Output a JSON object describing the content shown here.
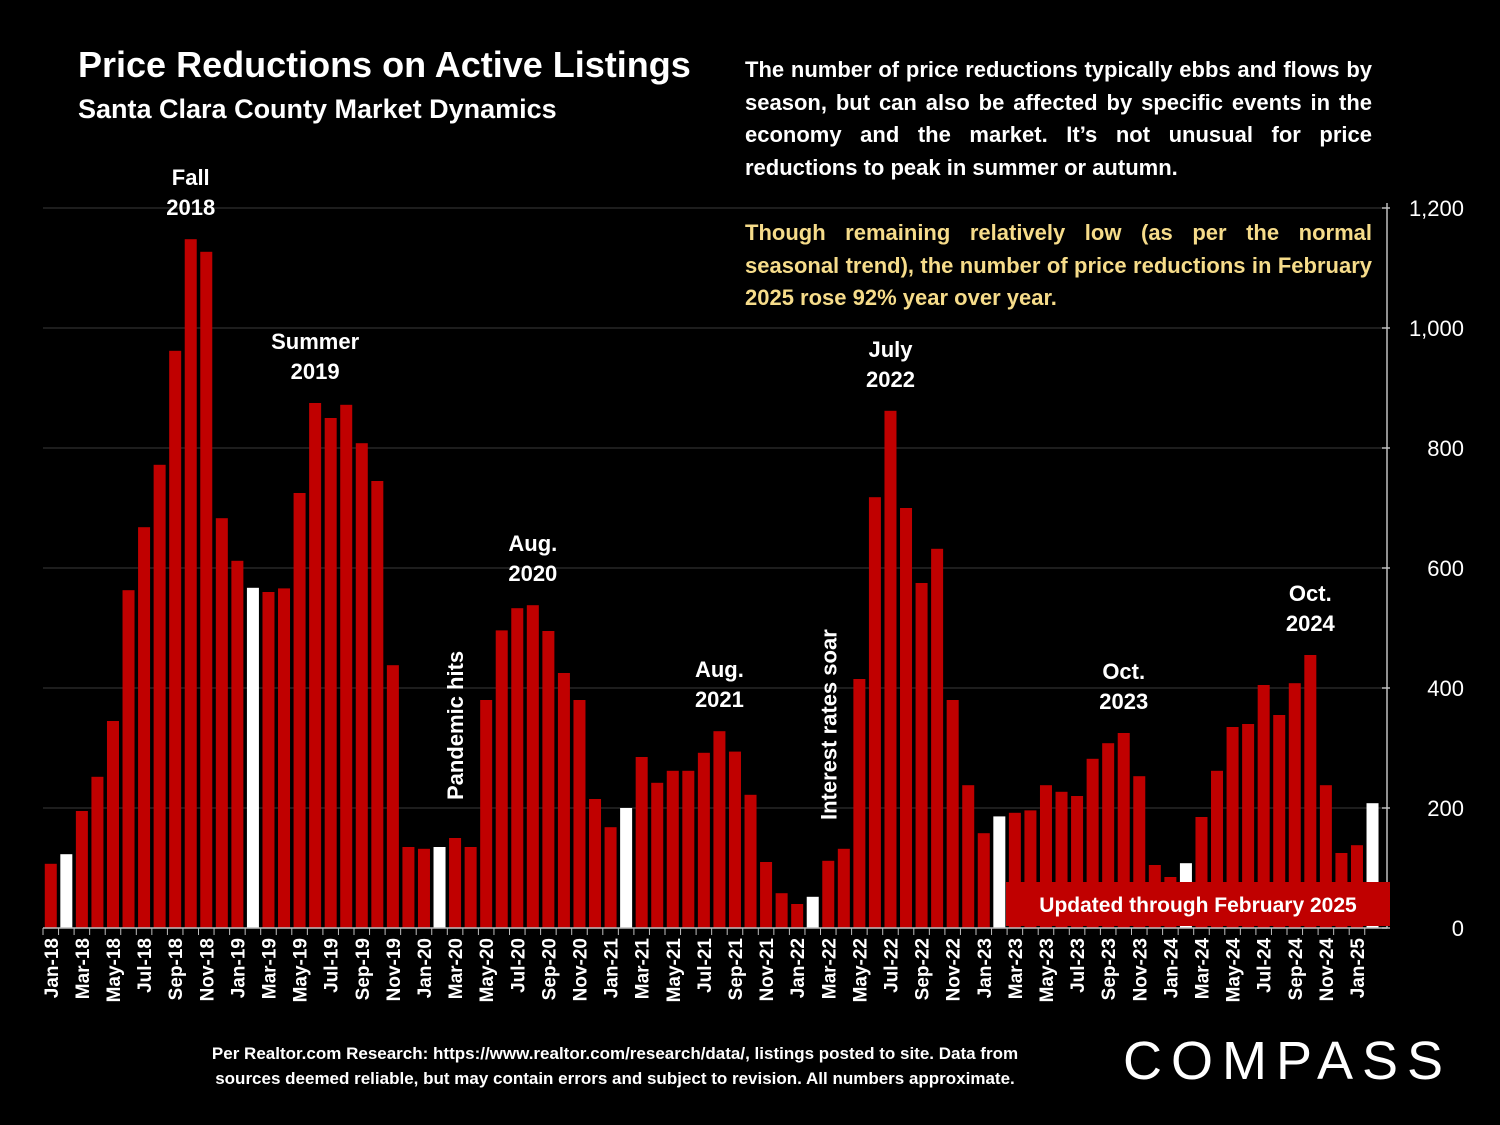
{
  "header": {
    "title": "Price Reductions on Active Listings",
    "subtitle": "Santa Clara County Market Dynamics"
  },
  "description": {
    "paragraph1": "The number of price reductions typically ebbs and flows by season, but can also be affected by specific events in the economy and the market. It’s not unusual for price reductions to peak in summer or autumn.",
    "paragraph2": "Though remaining relatively low (as per the normal seasonal trend), the number of price reductions in February 2025 rose 92% year over year."
  },
  "footer": {
    "line1": "Per Realtor.com Research:  https://www.realtor.com/research/data/, listings posted to site. Data from",
    "line2": "sources deemed reliable, but may contain errors and subject to revision. All numbers approximate."
  },
  "brand": {
    "logo": "COMPASS"
  },
  "colors": {
    "bar": "#c00000",
    "highlight": "#ffffff",
    "background": "#000000",
    "accent_text": "#f6dc8a",
    "badge": "#c00000"
  },
  "chart_data": {
    "type": "bar",
    "title": "Price Reductions on Active Listings",
    "y_axis_side": "right",
    "ylim": [
      0,
      1200
    ],
    "yticks": [
      "0",
      "200",
      "400",
      "600",
      "800",
      "1,000",
      "1,200"
    ],
    "ytick_values": [
      0,
      200,
      400,
      600,
      800,
      1000,
      1200
    ],
    "grid": true,
    "categories": [
      "Jan-18",
      "Feb-18",
      "Mar-18",
      "Apr-18",
      "May-18",
      "Jun-18",
      "Jul-18",
      "Aug-18",
      "Sep-18",
      "Oct-18",
      "Nov-18",
      "Dec-18",
      "Jan-19",
      "Feb-19",
      "Mar-19",
      "Apr-19",
      "May-19",
      "Jun-19",
      "Jul-19",
      "Aug-19",
      "Sep-19",
      "Oct-19",
      "Nov-19",
      "Dec-19",
      "Jan-20",
      "Feb-20",
      "Mar-20",
      "Apr-20",
      "May-20",
      "Jun-20",
      "Jul-20",
      "Aug-20",
      "Sep-20",
      "Oct-20",
      "Nov-20",
      "Dec-20",
      "Jan-21",
      "Feb-21",
      "Mar-21",
      "Apr-21",
      "May-21",
      "Jun-21",
      "Jul-21",
      "Aug-21",
      "Sep-21",
      "Oct-21",
      "Nov-21",
      "Dec-21",
      "Jan-22",
      "Feb-22",
      "Mar-22",
      "Apr-22",
      "May-22",
      "Jun-22",
      "Jul-22",
      "Aug-22",
      "Sep-22",
      "Oct-22",
      "Nov-22",
      "Dec-22",
      "Jan-23",
      "Feb-23",
      "Mar-23",
      "Apr-23",
      "May-23",
      "Jun-23",
      "Jul-23",
      "Aug-23",
      "Sep-23",
      "Oct-23",
      "Nov-23",
      "Dec-23",
      "Jan-24",
      "Feb-24",
      "Mar-24",
      "Apr-24",
      "May-24",
      "Jun-24",
      "Jul-24",
      "Aug-24",
      "Sep-24",
      "Oct-24",
      "Nov-24",
      "Dec-24",
      "Jan-25",
      "Feb-25"
    ],
    "visible_xtick_labels": [
      "Jan-18",
      "Mar-18",
      "May-18",
      "Jul-18",
      "Sep-18",
      "Nov-18",
      "Jan-19",
      "Mar-19",
      "May-19",
      "Jul-19",
      "Sep-19",
      "Nov-19",
      "Jan-20",
      "Mar-20",
      "May-20",
      "Jul-20",
      "Sep-20",
      "Nov-20",
      "Jan-21",
      "Mar-21",
      "May-21",
      "Jul-21",
      "Sep-21",
      "Nov-21",
      "Jan-22",
      "Mar-22",
      "May-22",
      "Jul-22",
      "Sep-22",
      "Nov-22",
      "Jan-23",
      "Mar-23",
      "May-23",
      "Jul-23",
      "Sep-23",
      "Nov-23",
      "Jan-24",
      "Mar-24",
      "May-24",
      "Jul-24",
      "Sep-24",
      "Nov-24",
      "Jan-25"
    ],
    "values": [
      107,
      123,
      195,
      252,
      345,
      563,
      668,
      772,
      962,
      1148,
      1127,
      683,
      612,
      567,
      560,
      566,
      725,
      875,
      850,
      872,
      808,
      745,
      438,
      135,
      132,
      135,
      150,
      135,
      380,
      496,
      533,
      538,
      495,
      425,
      380,
      215,
      168,
      200,
      285,
      242,
      262,
      262,
      292,
      328,
      294,
      222,
      110,
      58,
      40,
      52,
      112,
      132,
      415,
      718,
      862,
      700,
      575,
      632,
      380,
      238,
      158,
      186,
      192,
      196,
      238,
      227,
      220,
      282,
      308,
      325,
      253,
      105,
      85,
      108,
      185,
      262,
      335,
      340,
      405,
      355,
      408,
      455,
      238,
      125,
      138,
      208
    ],
    "highlight_months": [
      "Feb-18",
      "Feb-19",
      "Feb-20",
      "Feb-21",
      "Feb-22",
      "Feb-23",
      "Feb-24",
      "Feb-25"
    ],
    "annotations": [
      {
        "text": "Fall 2018",
        "lines": [
          "Fall",
          "2018"
        ],
        "month": "Oct-18"
      },
      {
        "text": "Summer 2019",
        "lines": [
          "Summer",
          "2019"
        ],
        "month": "Jun-19"
      },
      {
        "text": "Aug. 2020",
        "lines": [
          "Aug.",
          "2020"
        ],
        "month": "Aug-20"
      },
      {
        "text": "Aug. 2021",
        "lines": [
          "Aug.",
          "2021"
        ],
        "month": "Aug-21"
      },
      {
        "text": "July 2022",
        "lines": [
          "July",
          "2022"
        ],
        "month": "Jul-22"
      },
      {
        "text": "Oct. 2023",
        "lines": [
          "Oct.",
          "2023"
        ],
        "month": "Oct-23"
      },
      {
        "text": "Oct. 2024",
        "lines": [
          "Oct.",
          "2024"
        ],
        "month": "Oct-24"
      },
      {
        "text": "Pandemic hits",
        "lines": [
          "Pandemic hits"
        ],
        "month": "Mar-20",
        "vertical": true
      },
      {
        "text": "Interest rates soar",
        "lines": [
          "Interest rates soar"
        ],
        "month": "Mar-22",
        "vertical": true
      }
    ],
    "badge": "Updated through February 2025"
  }
}
